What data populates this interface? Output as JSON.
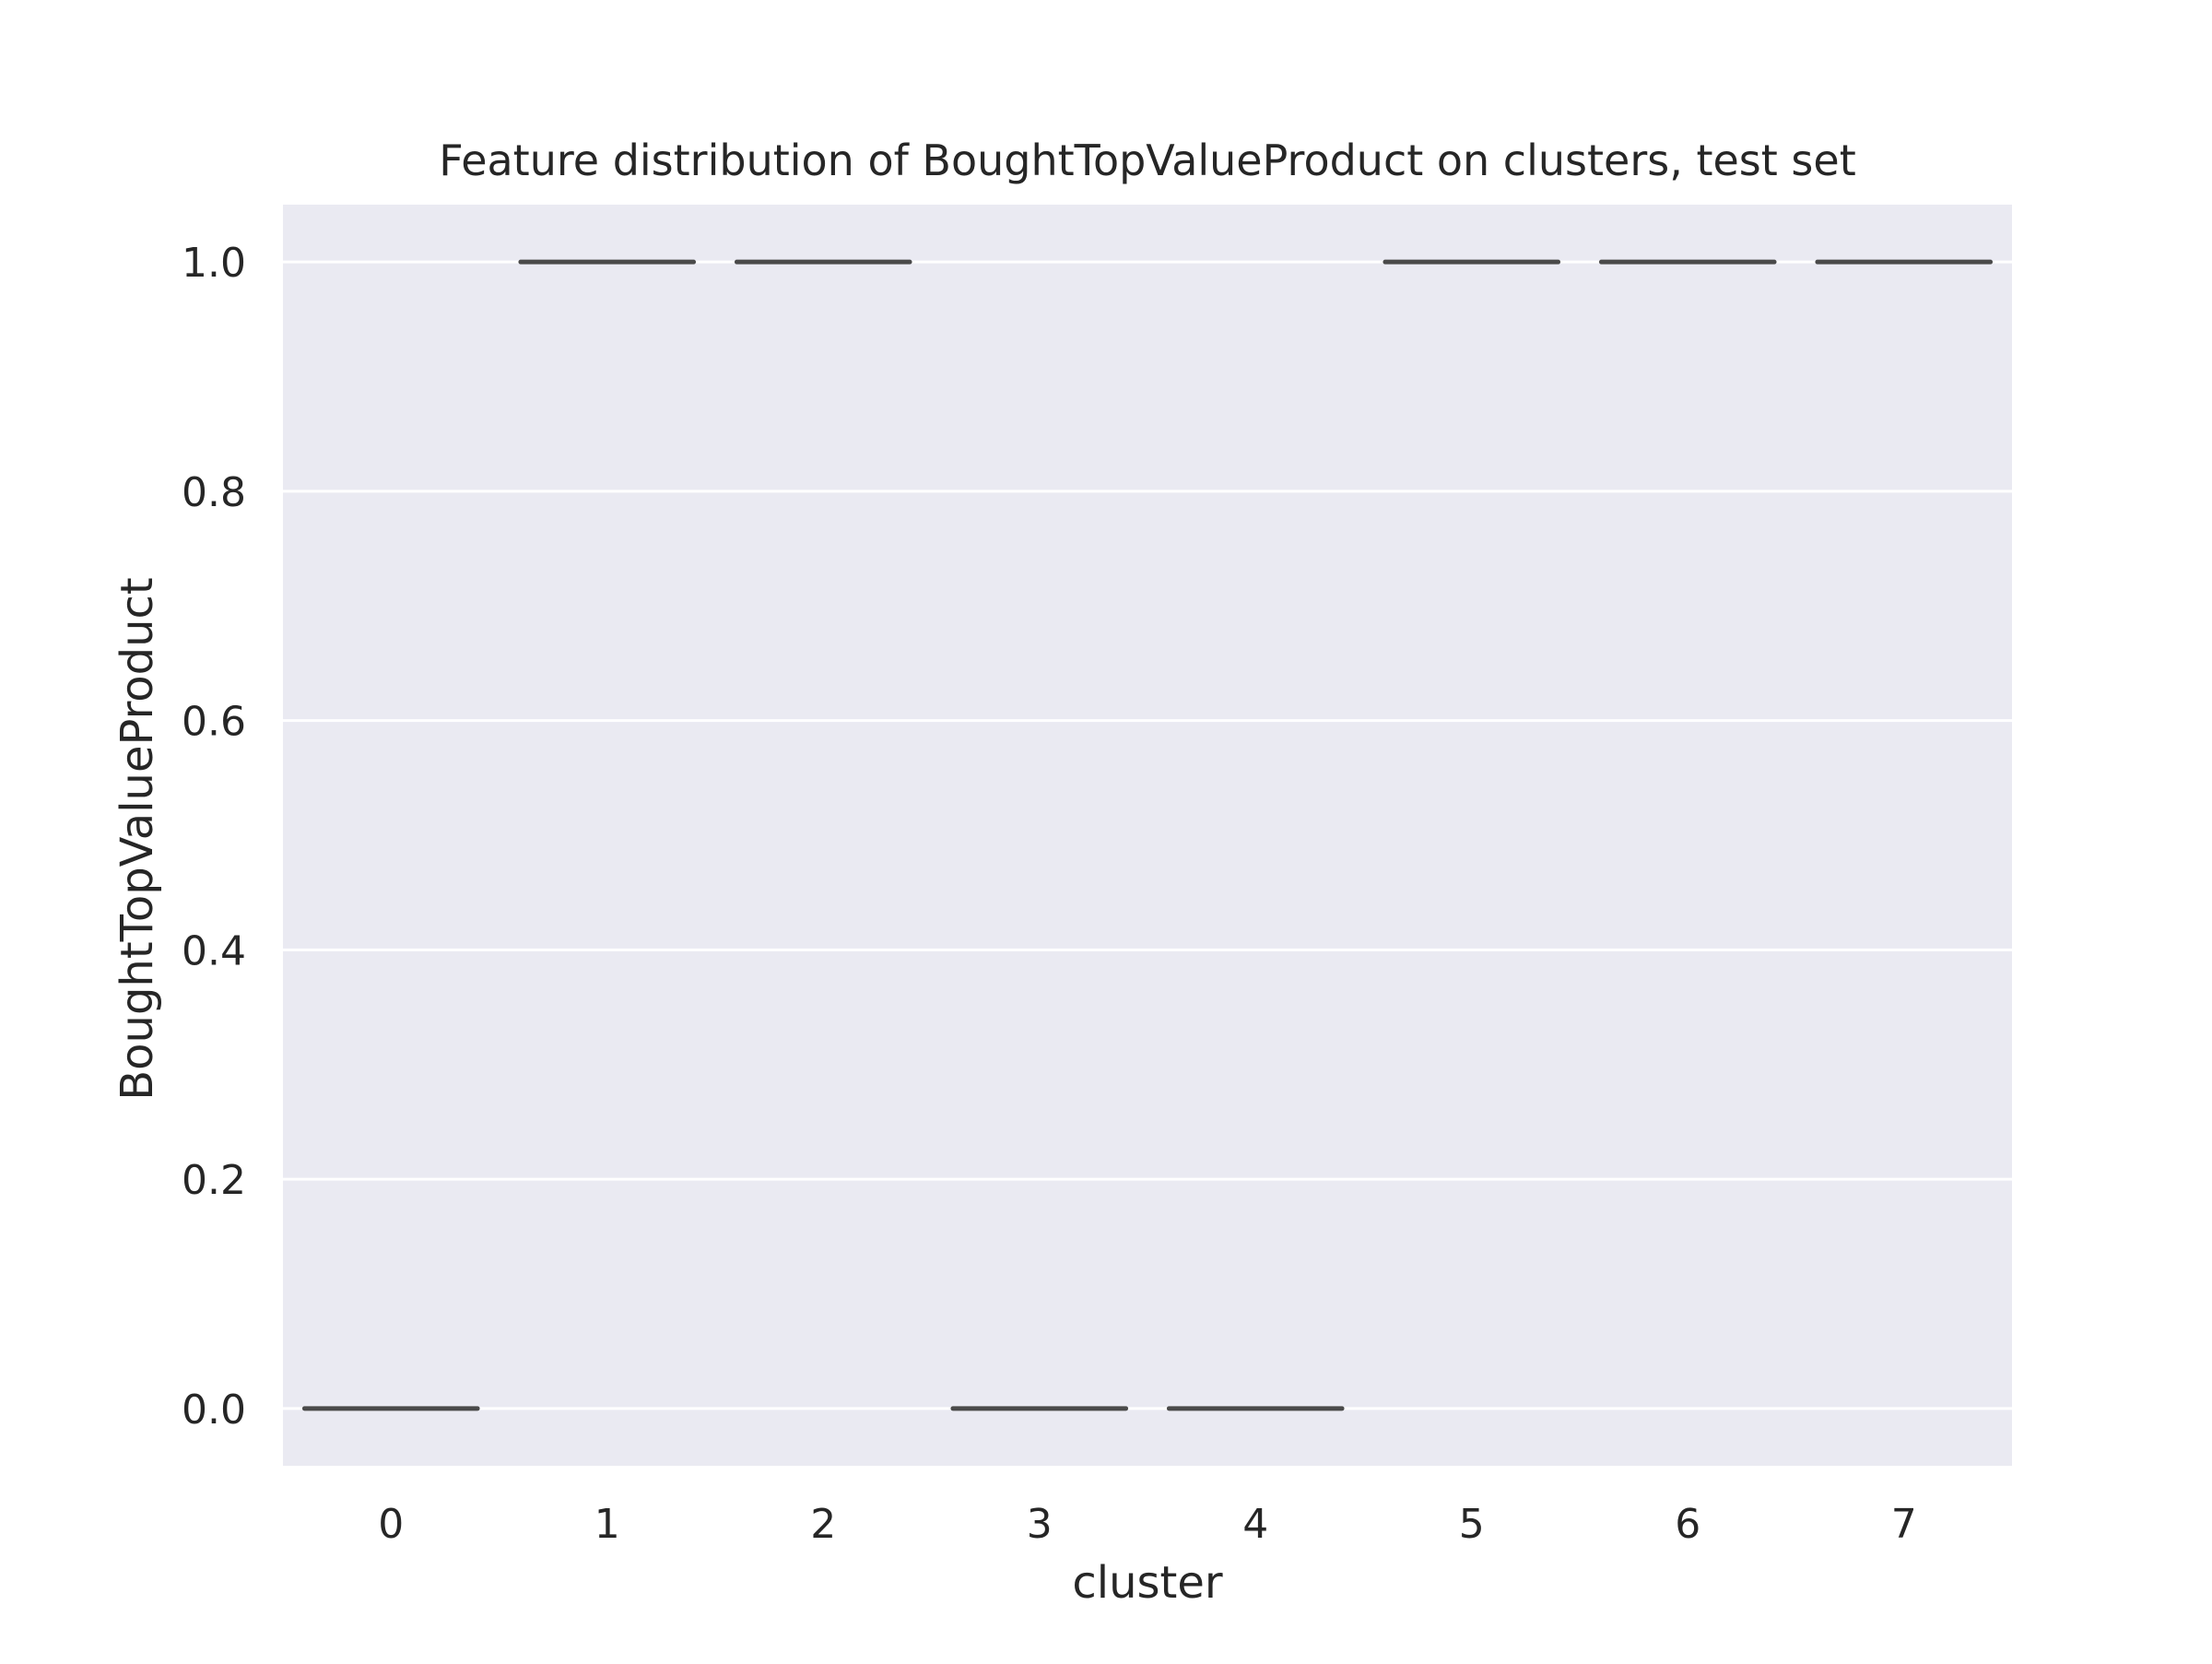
{
  "chart_data": {
    "type": "box",
    "title": "Feature distribution of BoughtTopValueProduct on clusters, test set",
    "xlabel": "cluster",
    "ylabel": "BoughtTopValueProduct",
    "categories": [
      "0",
      "1",
      "2",
      "3",
      "4",
      "5",
      "6",
      "7"
    ],
    "values": [
      0,
      1,
      1,
      0,
      0,
      1,
      1,
      1
    ],
    "ylim": [
      -0.05,
      1.05
    ],
    "yticks": [
      0.0,
      0.2,
      0.4,
      0.6,
      0.8,
      1.0
    ],
    "ytick_labels": [
      "0.0",
      "0.2",
      "0.4",
      "0.6",
      "0.8",
      "1.0"
    ],
    "grid": true,
    "colors": {
      "plot_background": "#eaeaf2",
      "grid": "#ffffff",
      "box_line": "#4a4a4a",
      "text": "#262626"
    }
  }
}
